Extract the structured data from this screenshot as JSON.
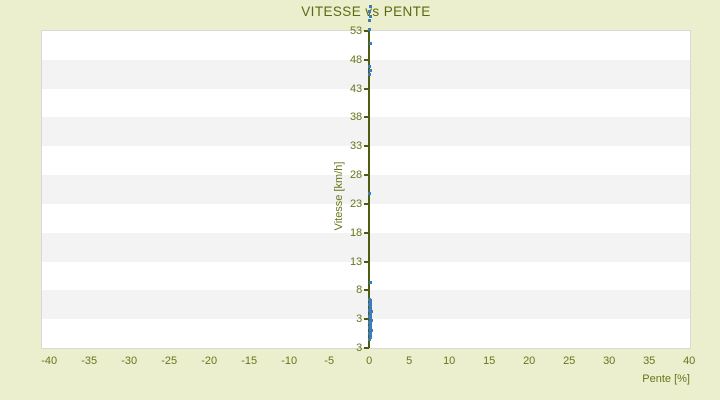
{
  "title": "VITESSE vs PENTE",
  "chart_data": {
    "type": "scatter",
    "title": "VITESSE vs PENTE",
    "xlabel": "Pente [%]",
    "ylabel": "Vitesse [km/h]",
    "xlim": [
      -40.9,
      40.1
    ],
    "ylim": [
      -2,
      53
    ],
    "x_ticks": [
      -40,
      -35,
      -30,
      -25,
      -20,
      -15,
      -10,
      -5,
      0,
      5,
      10,
      15,
      20,
      25,
      30,
      35,
      40
    ],
    "y_ticks": [
      53,
      48,
      43,
      38,
      33,
      28,
      23,
      18,
      13,
      8,
      3
    ],
    "y_axis_bottom_label": "3",
    "grid": "alternating-horizontal-bands",
    "legend": "none",
    "points": [
      [
        0,
        -0.5
      ],
      [
        0.15,
        -0.25
      ],
      [
        0.1,
        0
      ],
      [
        0.2,
        0.25
      ],
      [
        0,
        0.5
      ],
      [
        0.15,
        0.75
      ],
      [
        0.25,
        1
      ],
      [
        0.1,
        1.25
      ],
      [
        0,
        1.5
      ],
      [
        0.2,
        1.75
      ],
      [
        0.1,
        2
      ],
      [
        0.15,
        2.25
      ],
      [
        0,
        2.5
      ],
      [
        0.25,
        2.75
      ],
      [
        0.1,
        3
      ],
      [
        0.2,
        3.25
      ],
      [
        0,
        3.5
      ],
      [
        0.15,
        3.75
      ],
      [
        0.1,
        4
      ],
      [
        0.25,
        4.25
      ],
      [
        0,
        4.5
      ],
      [
        0.2,
        4.75
      ],
      [
        0.1,
        5
      ],
      [
        0.15,
        5.25
      ],
      [
        0,
        5.5
      ],
      [
        0.1,
        5.75
      ],
      [
        0.2,
        6
      ],
      [
        0.1,
        6.25
      ],
      [
        0,
        6.5
      ],
      [
        0.1,
        9.3
      ],
      [
        0,
        24.8
      ],
      [
        0,
        45.5
      ],
      [
        0.1,
        46.2
      ],
      [
        0,
        46.9
      ],
      [
        0.1,
        50.9
      ],
      [
        0,
        53.2
      ],
      [
        0,
        54.9
      ],
      [
        0.1,
        55.6
      ],
      [
        0,
        56.3
      ],
      [
        0.1,
        57.3
      ]
    ],
    "colors": {
      "background": "#ebefcd",
      "band_light": "#ffffff",
      "band_dark": "#f3f3f3",
      "plot_border": "#d8d8d8",
      "axis_line": "#4e5c0e",
      "text": "#68751c",
      "title_text": "#5c6a12",
      "point": "#3e7cb8"
    }
  }
}
